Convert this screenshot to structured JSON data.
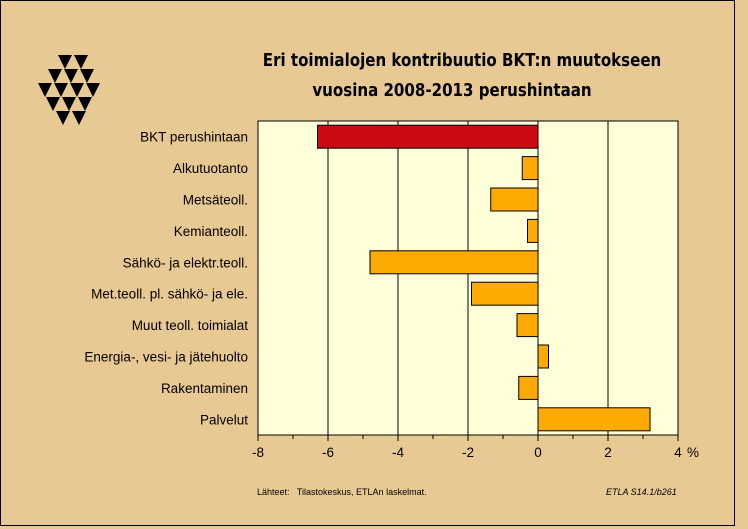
{
  "title_lines": [
    "Eri toimialojen kontribuutio BKT:n muutokseen",
    "vuosina 2008-2013 perushintaan"
  ],
  "footer": {
    "source": "Lähteet:   Tilastokeskus, ETLAn laskelmat.",
    "code": "ETLA S14.1/b261"
  },
  "colors": {
    "background": "#e8c893",
    "plot_area": "#ffffd9",
    "highlight_bar": "#cc0a14",
    "bar": "#ffaa00"
  },
  "chart_data": {
    "type": "bar",
    "orientation": "horizontal",
    "categories": [
      "BKT perushintaan",
      "Alkutuotanto",
      "Metsäteoll.",
      "Kemianteoll.",
      "Sähkö- ja elektr.teoll.",
      "Met.teoll. pl. sähkö- ja ele.",
      "Muut teoll. toimialat",
      "Energia-, vesi- ja jätehuolto",
      "Rakentaminen",
      "Palvelut"
    ],
    "values": [
      -6.3,
      -0.45,
      -1.35,
      -0.3,
      -4.8,
      -1.9,
      -0.6,
      0.3,
      -0.55,
      3.2
    ],
    "xlim": [
      -8,
      4
    ],
    "xticks": [
      -8,
      -6,
      -4,
      -2,
      0,
      2,
      4
    ],
    "xtick_labels": [
      "-8",
      "-6",
      "-4",
      "-2",
      "0",
      "2",
      "4"
    ],
    "unit": "%",
    "grid": true
  }
}
